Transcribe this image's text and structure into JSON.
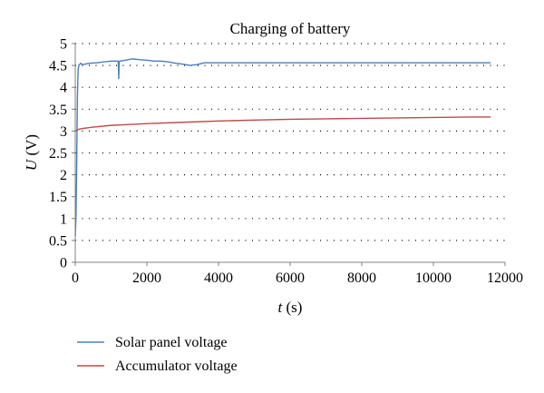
{
  "chart_data": {
    "type": "line",
    "title": "Charging of battery",
    "xlabel": {
      "var": "t",
      "unit": " (s)"
    },
    "ylabel": {
      "var": "U",
      "unit": " (V)"
    },
    "xlim": [
      0,
      12000
    ],
    "ylim": [
      0,
      5
    ],
    "xticks": [
      0,
      2000,
      4000,
      6000,
      8000,
      10000,
      12000
    ],
    "yticks": [
      0,
      0.5,
      1,
      1.5,
      2,
      2.5,
      3,
      3.5,
      4,
      4.5,
      5
    ],
    "grid": "horizontal dotted",
    "legend_position": "bottom-left",
    "series": [
      {
        "name": "Solar panel voltage",
        "color": "#4a7ebb",
        "x": [
          0,
          20,
          40,
          60,
          80,
          100,
          150,
          200,
          400,
          600,
          800,
          1000,
          1200,
          1215,
          1225,
          1240,
          1400,
          1600,
          1800,
          2000,
          2200,
          2400,
          2600,
          2800,
          3000,
          3200,
          3400,
          3600,
          4000,
          5000,
          6000,
          7000,
          8000,
          9000,
          10000,
          11000,
          11600
        ],
        "y": [
          0.6,
          1.0,
          2.2,
          3.8,
          4.4,
          4.5,
          4.55,
          4.52,
          4.55,
          4.56,
          4.58,
          4.6,
          4.6,
          4.2,
          4.55,
          4.6,
          4.62,
          4.65,
          4.63,
          4.62,
          4.6,
          4.6,
          4.58,
          4.55,
          4.53,
          4.5,
          4.52,
          4.56,
          4.56,
          4.56,
          4.56,
          4.56,
          4.56,
          4.56,
          4.56,
          4.56,
          4.56
        ]
      },
      {
        "name": "Accumulator voltage",
        "color": "#be4b48",
        "x": [
          0,
          100,
          200,
          500,
          1000,
          1500,
          2000,
          3000,
          4000,
          5000,
          6000,
          7000,
          8000,
          9000,
          10000,
          11000,
          11600
        ],
        "y": [
          3.0,
          3.04,
          3.06,
          3.09,
          3.13,
          3.15,
          3.17,
          3.2,
          3.23,
          3.25,
          3.27,
          3.28,
          3.29,
          3.3,
          3.31,
          3.32,
          3.32
        ]
      }
    ]
  }
}
